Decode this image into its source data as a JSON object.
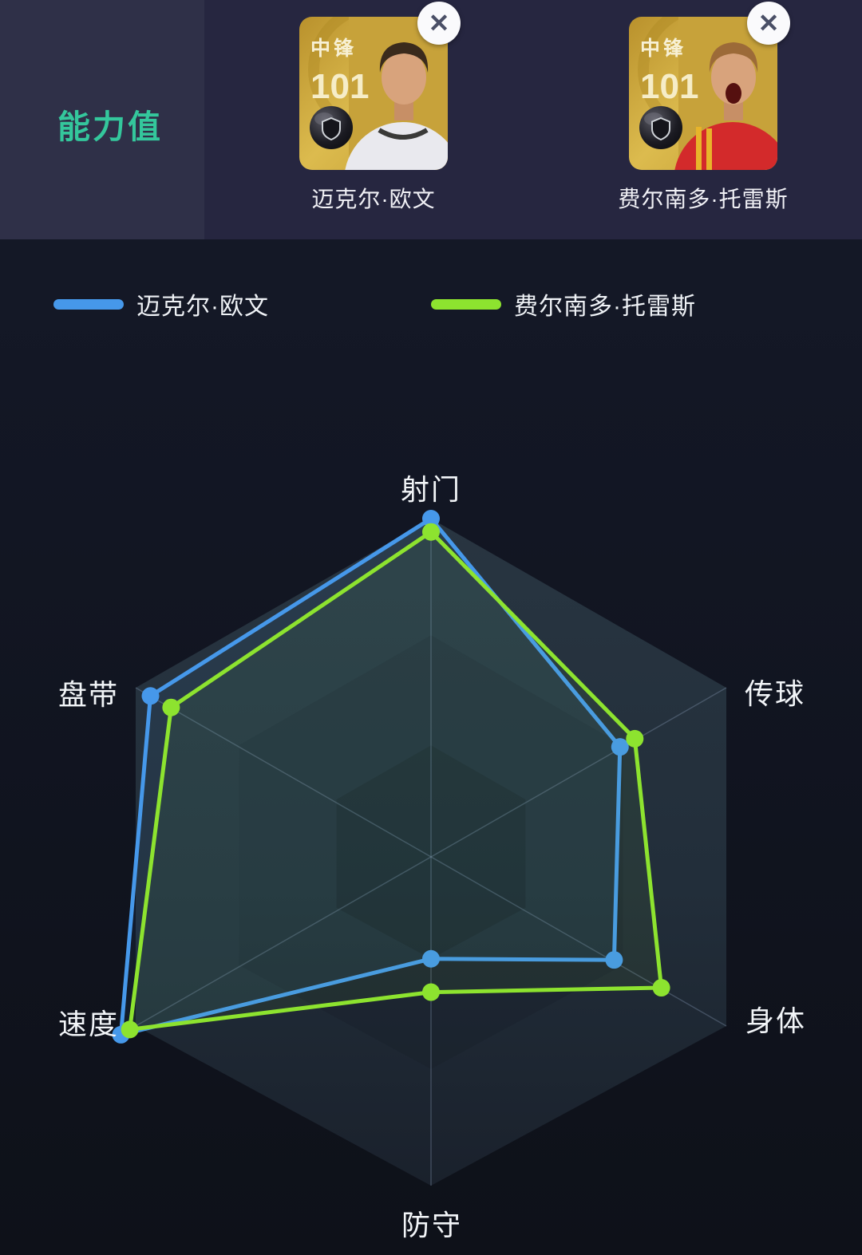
{
  "header": {
    "sidebar_title": "能力值",
    "close_symbol": "✕",
    "players": [
      {
        "position": "中锋",
        "rating": "101",
        "name": "迈克尔·欧文"
      },
      {
        "position": "中锋",
        "rating": "101",
        "name": "费尔南多·托雷斯"
      }
    ]
  },
  "chart_data": {
    "type": "radar",
    "title": "能力值",
    "categories": [
      "射门",
      "传球",
      "身体",
      "防守",
      "速度",
      "盘带"
    ],
    "max": 1.0,
    "grid": "hexagon, 6 axes, shaded concentric bands, no tick labels",
    "legend_position": "top",
    "series": [
      {
        "name": "迈克尔·欧文",
        "color": "#4698ea",
        "values": [
          1.0,
          0.64,
          0.62,
          0.32,
          1.05,
          0.95
        ]
      },
      {
        "name": "费尔南多·托雷斯",
        "color": "#8de32f",
        "values": [
          0.96,
          0.69,
          0.78,
          0.42,
          1.02,
          0.88
        ]
      }
    ]
  },
  "colors": {
    "accent_teal": "#34c79c",
    "header_bg": "#262640",
    "sidebar_bg": "#2f3048",
    "chart_bg": "#11151e",
    "card_gold": "#d4ae3f"
  }
}
